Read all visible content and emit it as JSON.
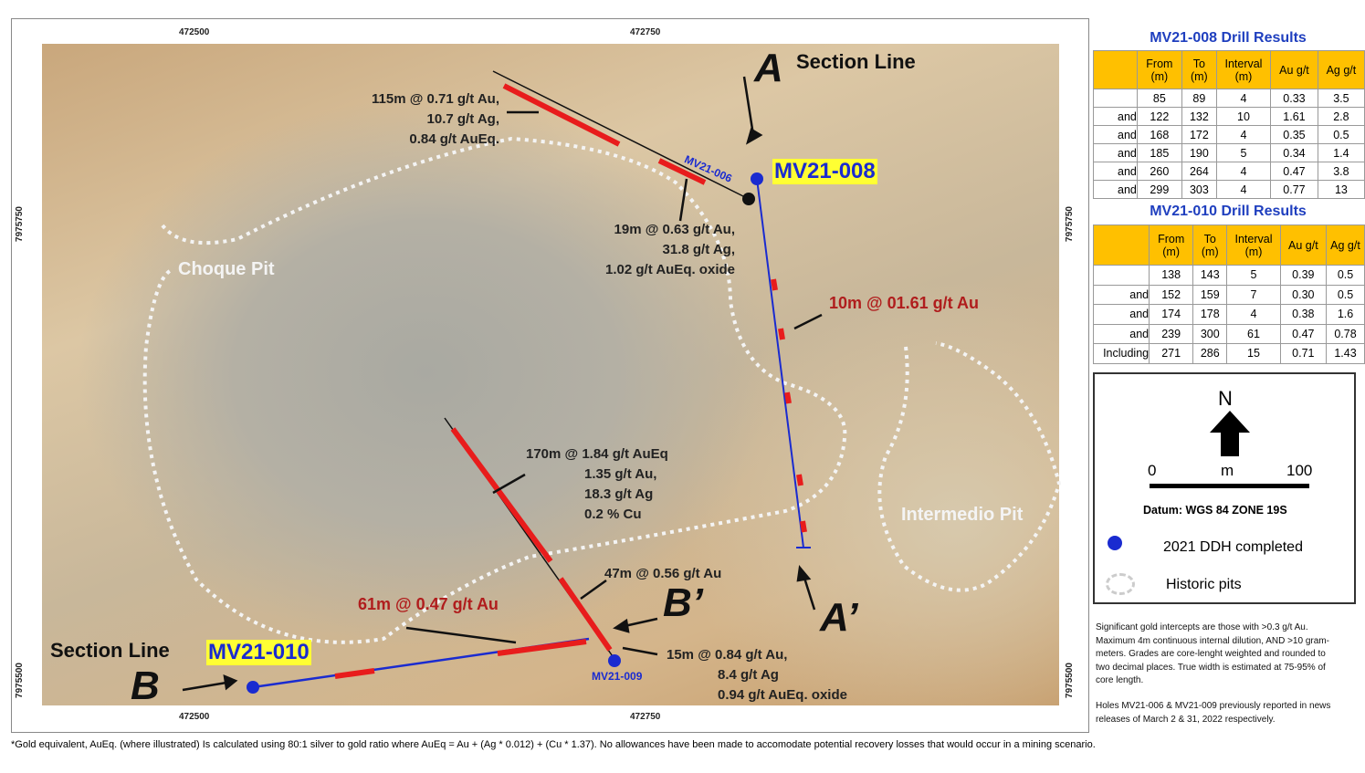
{
  "map": {
    "coords": {
      "top": [
        "472500",
        "472750"
      ],
      "bottom": [
        "472500",
        "472750"
      ],
      "left": [
        "7975750",
        "7975500"
      ],
      "right": [
        "7975750",
        "7975500"
      ]
    },
    "pits": [
      "Choque Pit",
      "Intermedio Pit"
    ],
    "sections": {
      "a": "A",
      "a_prime": "A’",
      "a_label": "Section Line",
      "b": "B",
      "b_prime": "B’",
      "b_label": "Section Line"
    },
    "holes": {
      "mv21_008": "MV21-008",
      "mv21_010": "MV21-010",
      "mv21_006": "MV21-006",
      "mv21_009": "MV21-009"
    },
    "annotations": {
      "a115": [
        "115m @ 0.71 g/t Au,",
        "10.7 g/t Ag,",
        "0.84 g/t AuEq."
      ],
      "a19": [
        "19m @ 0.63 g/t Au,",
        "31.8 g/t Ag,",
        "1.02 g/t AuEq. oxide"
      ],
      "a10": "10m @ 01.61 g/t Au",
      "a170": [
        "170m @ 1.84 g/t AuEq",
        "1.35 g/t Au,",
        "18.3 g/t Ag",
        "0.2 % Cu"
      ],
      "a47": "47m @ 0.56 g/t Au",
      "a61": "61m @ 0.47 g/t Au",
      "a15": [
        "15m @ 0.84 g/t Au,",
        "8.4 g/t Ag",
        "0.94 g/t AuEq. oxide"
      ]
    }
  },
  "tables": [
    {
      "title": "MV21-008 Drill Results",
      "columns": [
        "",
        "From (m)",
        "To (m)",
        "Interval (m)",
        "Au g/t",
        "Ag g/t"
      ],
      "rows": [
        [
          "",
          "85",
          "89",
          "4",
          "0.33",
          "3.5"
        ],
        [
          "and",
          "122",
          "132",
          "10",
          "1.61",
          "2.8"
        ],
        [
          "and",
          "168",
          "172",
          "4",
          "0.35",
          "0.5"
        ],
        [
          "and",
          "185",
          "190",
          "5",
          "0.34",
          "1.4"
        ],
        [
          "and",
          "260",
          "264",
          "4",
          "0.47",
          "3.8"
        ],
        [
          "and",
          "299",
          "303",
          "4",
          "0.77",
          "13"
        ]
      ]
    },
    {
      "title": "MV21-010 Drill Results",
      "columns": [
        "",
        "From (m)",
        "To (m)",
        "Interval (m)",
        "Au g/t",
        "Ag g/t"
      ],
      "rows": [
        [
          "",
          "138",
          "143",
          "5",
          "0.39",
          "0.5"
        ],
        [
          "and",
          "152",
          "159",
          "7",
          "0.30",
          "0.5"
        ],
        [
          "and",
          "174",
          "178",
          "4",
          "0.38",
          "1.6"
        ],
        [
          "and",
          "239",
          "300",
          "61",
          "0.47",
          "0.78"
        ],
        [
          "Including",
          "271",
          "286",
          "15",
          "0.71",
          "1.43"
        ]
      ]
    }
  ],
  "legend": {
    "north": "N",
    "scale": [
      "0",
      "m",
      "100"
    ],
    "datum": "Datum: WGS 84 ZONE 19S",
    "ddh": "2021 DDH completed",
    "pits": "Historic pits"
  },
  "notes": [
    "Significant gold intercepts are those with >0.3 g/t Au. Maximum 4m continuous internal dilution, AND >10 gram-meters.  Grades are core-lenght weighted and rounded to two decimal places.  True width is estimated at 75-95% of core length.",
    "Holes MV21-006 & MV21-009 previously reported in news releases of March 2 & 31, 2022 respectively."
  ],
  "footnote": "*Gold equivalent, AuEq. (where illustrated) Is calculated using 80:1 silver to gold ratio where AuEq = Au + (Ag * 0.012) + (Cu * 1.37). No allowances have been made to accomodate potential recovery losses that would occur in a mining scenario."
}
